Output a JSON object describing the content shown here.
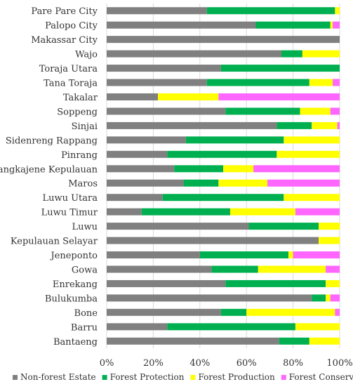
{
  "chart_data": {
    "type": "bar",
    "orientation": "horizontal",
    "stacked": true,
    "percent_stacked": true,
    "categories": [
      "Pare Pare City",
      "Palopo City",
      "Makassar City",
      "Wajo",
      "Toraja Utara",
      "Tana Toraja",
      "Takalar",
      "Soppeng",
      "Sinjai",
      "Sidenreng Rappang",
      "Pinrang",
      "Pangkajene Kepulauan",
      "Maros",
      "Luwu Utara",
      "Luwu Timur",
      "Luwu",
      "Kepulauan Selayar",
      "Jeneponto",
      "Gowa",
      "Enrekang",
      "Bulukumba",
      "Bone",
      "Barru",
      "Bantaeng"
    ],
    "series": [
      {
        "name": "Non-forest Estate",
        "color": "#808080",
        "values": [
          43,
          64,
          100,
          75,
          49,
          43,
          22,
          51,
          73,
          34,
          26,
          29,
          33,
          24,
          15,
          61,
          91,
          40,
          45,
          51,
          88,
          49,
          26,
          74
        ]
      },
      {
        "name": "Forest Protection",
        "color": "#00b050",
        "values": [
          55,
          32,
          0,
          9,
          51,
          44,
          0,
          32,
          15,
          42,
          47,
          21,
          15,
          52,
          38,
          30,
          0,
          38,
          20,
          43,
          6,
          11,
          55,
          13
        ]
      },
      {
        "name": "Forest Production",
        "color": "#ffff00",
        "values": [
          2,
          1,
          0,
          16,
          0,
          10,
          26,
          13,
          11,
          24,
          27,
          13,
          21,
          24,
          28,
          9,
          9,
          2,
          29,
          6,
          2,
          38,
          19,
          13
        ]
      },
      {
        "name": "Forest Conservation",
        "color": "#ff66ff",
        "values": [
          0,
          3,
          0,
          0,
          0,
          3,
          52,
          4,
          1,
          0,
          0,
          37,
          31,
          0,
          19,
          0,
          0,
          20,
          6,
          0,
          4,
          2,
          0,
          0
        ]
      }
    ],
    "x_ticks": [
      "0%",
      "20%",
      "40%",
      "60%",
      "80%",
      "100%"
    ],
    "xlim": [
      0,
      100
    ],
    "legend_position": "bottom",
    "grid": "vertical"
  }
}
